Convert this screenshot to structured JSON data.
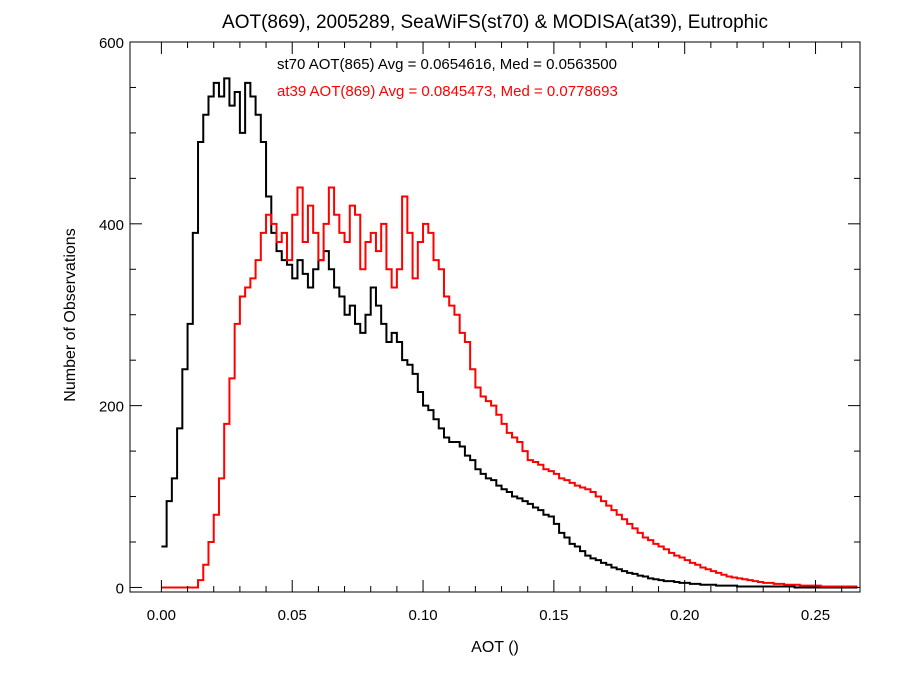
{
  "chart_data": {
    "type": "line",
    "title": "AOT(869), 2005289, SeaWiFS(st70) & MODISA(at39), Eutrophic",
    "xlabel": "AOT ()",
    "ylabel": "Number of Observations",
    "xlim": [
      -0.012,
      0.267
    ],
    "ylim": [
      -5,
      600
    ],
    "x_ticks": [
      0.0,
      0.05,
      0.1,
      0.15,
      0.2,
      0.25
    ],
    "x_tick_labels": [
      "0.00",
      "0.05",
      "0.10",
      "0.15",
      "0.20",
      "0.25"
    ],
    "y_ticks": [
      0,
      200,
      400,
      600
    ],
    "y_tick_labels": [
      "0",
      "200",
      "400",
      "600"
    ],
    "grid": false,
    "legend_position": "top-center",
    "series": [
      {
        "name": "st70",
        "annotation": "st70 AOT(865) Avg = 0.0654616, Med = 0.0563500",
        "color": "#000000",
        "x": [
          0.0,
          0.002,
          0.004,
          0.006,
          0.008,
          0.01,
          0.012,
          0.014,
          0.016,
          0.018,
          0.02,
          0.022,
          0.024,
          0.026,
          0.028,
          0.03,
          0.032,
          0.034,
          0.036,
          0.038,
          0.04,
          0.042,
          0.044,
          0.046,
          0.048,
          0.05,
          0.052,
          0.054,
          0.056,
          0.058,
          0.06,
          0.062,
          0.064,
          0.066,
          0.068,
          0.07,
          0.072,
          0.074,
          0.076,
          0.078,
          0.08,
          0.082,
          0.084,
          0.086,
          0.088,
          0.09,
          0.092,
          0.094,
          0.096,
          0.098,
          0.1,
          0.102,
          0.104,
          0.106,
          0.108,
          0.11,
          0.112,
          0.114,
          0.116,
          0.118,
          0.12,
          0.122,
          0.124,
          0.126,
          0.128,
          0.13,
          0.132,
          0.134,
          0.136,
          0.138,
          0.14,
          0.142,
          0.144,
          0.146,
          0.148,
          0.15,
          0.152,
          0.154,
          0.156,
          0.158,
          0.16,
          0.162,
          0.164,
          0.166,
          0.168,
          0.17,
          0.172,
          0.174,
          0.176,
          0.178,
          0.18,
          0.182,
          0.184,
          0.186,
          0.188,
          0.19,
          0.192,
          0.194,
          0.196,
          0.198,
          0.2,
          0.202,
          0.204,
          0.206,
          0.208,
          0.21,
          0.212,
          0.214,
          0.216,
          0.218,
          0.22,
          0.222,
          0.224,
          0.226,
          0.228,
          0.23,
          0.232,
          0.234,
          0.236,
          0.238,
          0.24,
          0.242,
          0.244,
          0.246,
          0.248,
          0.25,
          0.252,
          0.254,
          0.256,
          0.258,
          0.26,
          0.262,
          0.264
        ],
        "values": [
          45,
          95,
          120,
          175,
          240,
          290,
          390,
          490,
          520,
          540,
          555,
          540,
          560,
          530,
          545,
          500,
          555,
          540,
          520,
          490,
          430,
          390,
          370,
          360,
          355,
          340,
          360,
          345,
          330,
          350,
          360,
          370,
          350,
          330,
          320,
          300,
          310,
          290,
          280,
          300,
          330,
          310,
          290,
          270,
          280,
          270,
          250,
          245,
          235,
          215,
          200,
          195,
          185,
          175,
          165,
          160,
          160,
          155,
          145,
          140,
          130,
          125,
          120,
          118,
          112,
          108,
          105,
          100,
          98,
          95,
          92,
          88,
          85,
          80,
          78,
          70,
          60,
          55,
          48,
          45,
          40,
          35,
          32,
          30,
          27,
          25,
          22,
          20,
          18,
          16,
          15,
          13,
          12,
          10,
          9,
          8,
          7,
          7,
          6,
          5,
          5,
          4,
          4,
          3,
          3,
          3,
          2,
          2,
          2,
          2,
          1,
          1,
          1,
          1,
          1,
          1,
          1,
          1,
          1,
          1,
          1,
          0,
          0,
          0,
          0,
          0,
          0,
          0,
          0,
          0,
          0,
          0,
          0
        ]
      },
      {
        "name": "at39",
        "annotation": "at39 AOT(869) Avg = 0.0845473, Med = 0.0778693",
        "color": "#ff0000",
        "x": [
          0.0,
          0.002,
          0.004,
          0.006,
          0.008,
          0.01,
          0.012,
          0.014,
          0.016,
          0.018,
          0.02,
          0.022,
          0.024,
          0.026,
          0.028,
          0.03,
          0.032,
          0.034,
          0.036,
          0.038,
          0.04,
          0.042,
          0.044,
          0.046,
          0.048,
          0.05,
          0.052,
          0.054,
          0.056,
          0.058,
          0.06,
          0.062,
          0.064,
          0.066,
          0.068,
          0.07,
          0.072,
          0.074,
          0.076,
          0.078,
          0.08,
          0.082,
          0.084,
          0.086,
          0.088,
          0.09,
          0.092,
          0.094,
          0.096,
          0.098,
          0.1,
          0.102,
          0.104,
          0.106,
          0.108,
          0.11,
          0.112,
          0.114,
          0.116,
          0.118,
          0.12,
          0.122,
          0.124,
          0.126,
          0.128,
          0.13,
          0.132,
          0.134,
          0.136,
          0.138,
          0.14,
          0.142,
          0.144,
          0.146,
          0.148,
          0.15,
          0.152,
          0.154,
          0.156,
          0.158,
          0.16,
          0.162,
          0.164,
          0.166,
          0.168,
          0.17,
          0.172,
          0.174,
          0.176,
          0.178,
          0.18,
          0.182,
          0.184,
          0.186,
          0.188,
          0.19,
          0.192,
          0.194,
          0.196,
          0.198,
          0.2,
          0.202,
          0.204,
          0.206,
          0.208,
          0.21,
          0.212,
          0.214,
          0.216,
          0.218,
          0.22,
          0.222,
          0.224,
          0.226,
          0.228,
          0.23,
          0.232,
          0.234,
          0.236,
          0.238,
          0.24,
          0.242,
          0.244,
          0.246,
          0.248,
          0.25,
          0.252,
          0.254,
          0.256,
          0.258,
          0.26,
          0.262,
          0.264
        ],
        "values": [
          0,
          0,
          0,
          0,
          0,
          0,
          0,
          8,
          25,
          50,
          80,
          120,
          180,
          230,
          290,
          320,
          330,
          340,
          360,
          390,
          410,
          400,
          380,
          390,
          360,
          410,
          440,
          380,
          420,
          390,
          360,
          400,
          440,
          410,
          390,
          380,
          420,
          410,
          350,
          380,
          390,
          370,
          400,
          350,
          330,
          350,
          430,
          390,
          340,
          380,
          400,
          390,
          360,
          350,
          320,
          310,
          300,
          280,
          270,
          240,
          220,
          210,
          205,
          200,
          190,
          180,
          170,
          165,
          160,
          150,
          140,
          138,
          135,
          130,
          128,
          125,
          120,
          118,
          115,
          112,
          110,
          108,
          105,
          100,
          95,
          90,
          85,
          80,
          75,
          70,
          65,
          60,
          55,
          52,
          48,
          45,
          42,
          38,
          35,
          33,
          30,
          27,
          25,
          22,
          20,
          18,
          16,
          14,
          12,
          11,
          10,
          9,
          8,
          7,
          6,
          5,
          5,
          4,
          4,
          3,
          3,
          3,
          2,
          2,
          2,
          2,
          1,
          1,
          1,
          1,
          1,
          1,
          1
        ]
      }
    ]
  }
}
